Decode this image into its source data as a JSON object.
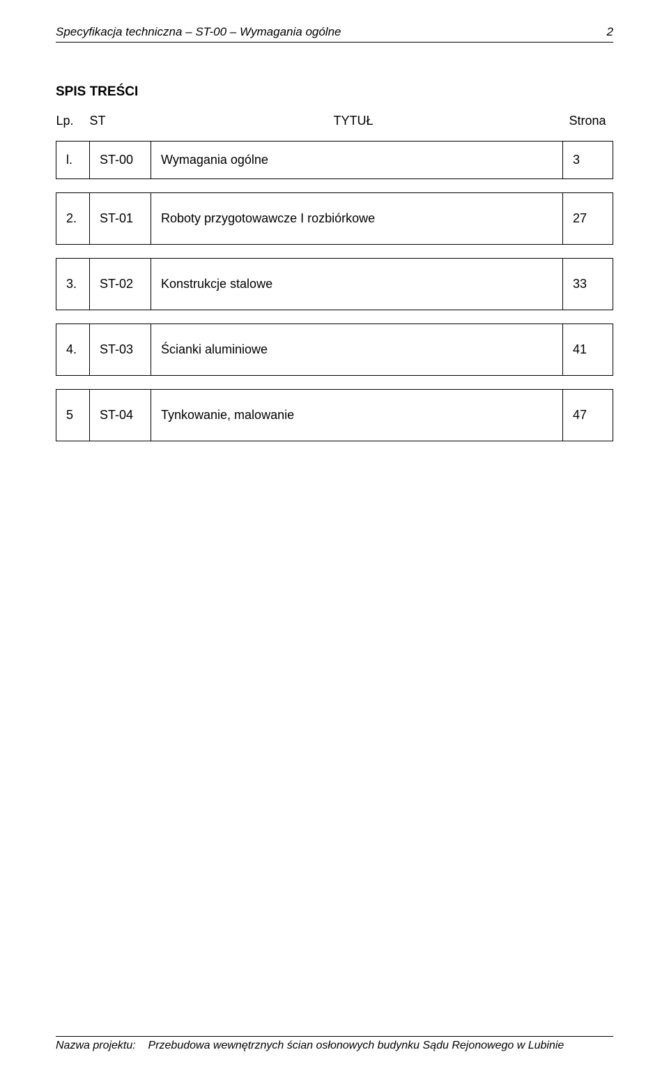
{
  "header": {
    "left": "Specyfikacja techniczna – ST-00 – Wymagania ogólne",
    "page_number": "2"
  },
  "toc": {
    "title": "SPIS TREŚCI",
    "columns": {
      "lp": "Lp.",
      "st": "ST",
      "title": "TYTUŁ",
      "page": "Strona"
    },
    "rows": [
      {
        "lp": "l.",
        "st": "ST-00",
        "title": "Wymagania ogólne",
        "page": "3",
        "tall": false
      },
      {
        "lp": "2.",
        "st": "ST-01",
        "title": "Roboty przygotowawcze I rozbiórkowe",
        "page": "27",
        "tall": true
      },
      {
        "lp": "3.",
        "st": "ST-02",
        "title": "Konstrukcje stalowe",
        "page": "33",
        "tall": true
      },
      {
        "lp": "4.",
        "st": "ST-03",
        "title": "Ścianki aluminiowe",
        "page": "41",
        "tall": true
      },
      {
        "lp": "5",
        "st": "ST-04",
        "title": "Tynkowanie, malowanie",
        "page": "47",
        "tall": true
      }
    ]
  },
  "footer": {
    "label": "Nazwa projektu:",
    "value": "Przebudowa wewnętrznych ścian osłonowych budynku Sądu Rejonowego w Lubinie"
  }
}
